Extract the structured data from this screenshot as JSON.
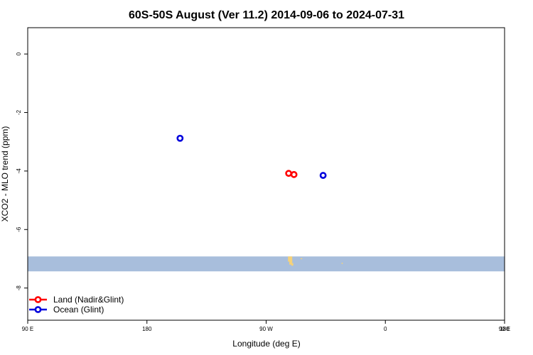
{
  "chart_data": {
    "type": "scatter",
    "title": "60S-50S August (Ver 11.2)   2014-09-06 to 2024-07-31",
    "xlabel": "Longitude (deg E)",
    "ylabel": "XCO2 - MLO trend (ppm)",
    "xlim": [
      90,
      450
    ],
    "ylim": [
      -9.1,
      0.9
    ],
    "x_ticks": [
      {
        "value": 90,
        "label": "90 E"
      },
      {
        "value": 180,
        "label": "180"
      },
      {
        "value": 270,
        "label": "90 W"
      },
      {
        "value": 360,
        "label": "0"
      },
      {
        "value": 450,
        "label": "90 E"
      },
      {
        "value": 540,
        "label": "180"
      }
    ],
    "y_ticks": [
      {
        "value": 0,
        "label": "0"
      },
      {
        "value": -2,
        "label": "-2"
      },
      {
        "value": -4,
        "label": "-4"
      },
      {
        "value": -6,
        "label": "-6"
      },
      {
        "value": -8,
        "label": "-8"
      }
    ],
    "map_band": {
      "y_top": -6.92,
      "y_bottom": -7.43,
      "color": "#a8bedc",
      "land_color": "#f5d27a"
    },
    "legend": {
      "placement": "bottom-left"
    },
    "series": [
      {
        "name": "Land (Nadir&Glint)",
        "color": "#ff0000",
        "points": [
          {
            "x": 287,
            "y": -4.08
          },
          {
            "x": 291,
            "y": -4.12
          }
        ]
      },
      {
        "name": "Ocean (Glint)",
        "color": "#0000dd",
        "points": [
          {
            "x": 205,
            "y": -2.88
          },
          {
            "x": 313,
            "y": -4.15
          }
        ]
      }
    ]
  }
}
